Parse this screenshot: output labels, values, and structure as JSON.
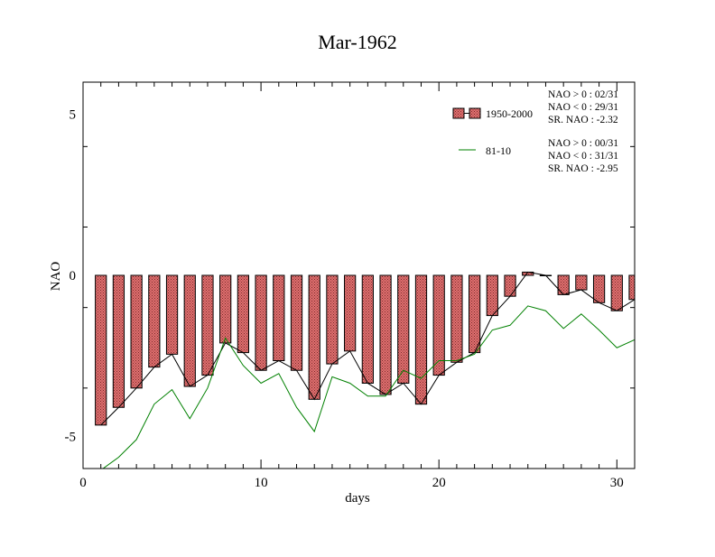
{
  "chart_data": {
    "type": "bar",
    "title": "Mar-1962",
    "xlabel": "days",
    "ylabel": "NAO",
    "xlim": [
      0,
      31
    ],
    "ylim": [
      -6,
      6
    ],
    "xticks": [
      0,
      10,
      20,
      30
    ],
    "yticks": [
      -5,
      0,
      5
    ],
    "grid": false,
    "legend_position": "top-right",
    "x": [
      1,
      2,
      3,
      4,
      5,
      6,
      7,
      8,
      9,
      10,
      11,
      12,
      13,
      14,
      15,
      16,
      17,
      18,
      19,
      20,
      21,
      22,
      23,
      24,
      25,
      26,
      27,
      28,
      29,
      30,
      31
    ],
    "series": [
      {
        "name": "1950-2000",
        "kind": "bar",
        "color": "#e07070",
        "values": [
          -4.65,
          -4.1,
          -3.5,
          -2.85,
          -2.45,
          -3.45,
          -3.1,
          -2.1,
          -2.4,
          -2.95,
          -2.65,
          -2.95,
          -3.85,
          -2.75,
          -2.35,
          -3.35,
          -3.7,
          -3.35,
          -4.0,
          -3.1,
          -2.7,
          -2.4,
          -1.25,
          -0.65,
          0.1,
          0.0,
          -0.6,
          -0.45,
          -0.85,
          -1.1,
          -0.75
        ]
      },
      {
        "name": "81-10",
        "kind": "line",
        "color": "#008000",
        "values": [
          -6.05,
          -5.65,
          -5.1,
          -4.0,
          -3.55,
          -4.45,
          -3.5,
          -1.95,
          -2.8,
          -3.35,
          -3.05,
          -4.1,
          -4.85,
          -3.15,
          -3.35,
          -3.75,
          -3.75,
          -2.95,
          -3.2,
          -2.65,
          -2.65,
          -2.45,
          -1.7,
          -1.55,
          -0.95,
          -1.1,
          -1.65,
          -1.2,
          -1.7,
          -2.25,
          -2.0
        ]
      }
    ],
    "stats": [
      {
        "series": "1950-2000",
        "lines": [
          "NAO > 0 : 02/31",
          "NAO < 0 : 29/31",
          "SR. NAO : -2.32"
        ]
      },
      {
        "series": "81-10",
        "lines": [
          "NAO > 0 : 00/31",
          "NAO < 0 : 31/31",
          "SR. NAO : -2.95"
        ]
      }
    ],
    "colors": {
      "bar_outline": "#000000",
      "line_1950": "#000000",
      "line_8110": "#008000"
    }
  }
}
